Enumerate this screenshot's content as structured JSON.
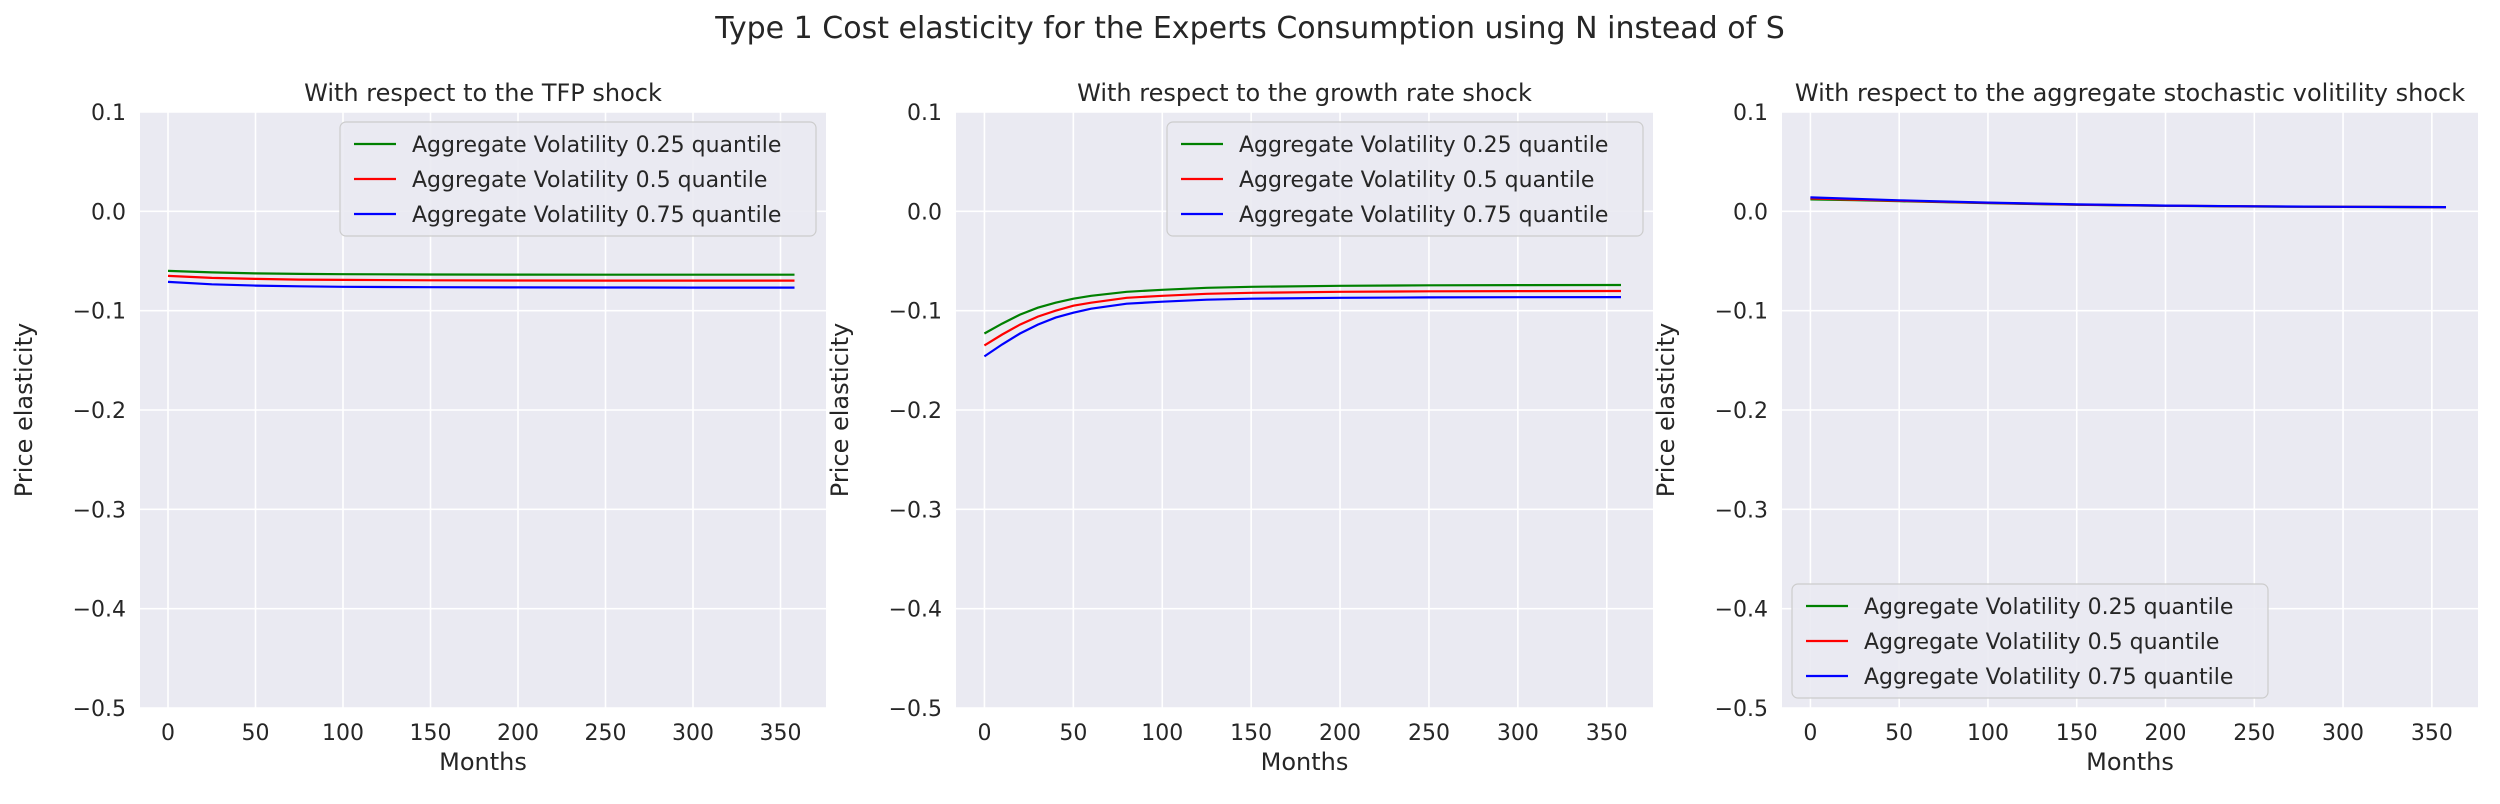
{
  "figure": {
    "suptitle": "Type 1 Cost elasticity for the Experts Consumption using N instead of S"
  },
  "colors": {
    "plot_background": "#EAEAF2",
    "grid": "#FFFFFF",
    "q025": "#008000",
    "q05": "#FF0000",
    "q075": "#0000FF"
  },
  "chart_data": [
    {
      "type": "line",
      "title": "With respect to the TFP shock",
      "xlabel": "Months",
      "ylabel": "Price elasticity",
      "xlim": [
        -16,
        376
      ],
      "ylim": [
        -0.5,
        0.1
      ],
      "xticks": [
        0,
        50,
        100,
        150,
        200,
        250,
        300,
        350
      ],
      "yticks": [
        -0.5,
        -0.4,
        -0.3,
        -0.2,
        -0.1,
        0.0,
        0.1
      ],
      "ytick_labels": [
        "−0.5",
        "−0.4",
        "−0.3",
        "−0.2",
        "−0.1",
        "0.0",
        "0.1"
      ],
      "grid": true,
      "legend_position": "upper right",
      "x": [
        0,
        25,
        50,
        75,
        100,
        150,
        200,
        250,
        300,
        358
      ],
      "series": [
        {
          "name": "Aggregate Volatility 0.25 quantile",
          "color": "#008000",
          "values": [
            -0.06,
            -0.0615,
            -0.0625,
            -0.063,
            -0.0633,
            -0.0636,
            -0.0637,
            -0.0638,
            -0.0638,
            -0.0638
          ]
        },
        {
          "name": "Aggregate Volatility 0.5 quantile",
          "color": "#FF0000",
          "values": [
            -0.065,
            -0.067,
            -0.068,
            -0.0687,
            -0.069,
            -0.0694,
            -0.0696,
            -0.0697,
            -0.0697,
            -0.0697
          ]
        },
        {
          "name": "Aggregate Volatility 0.75 quantile",
          "color": "#0000FF",
          "values": [
            -0.071,
            -0.0735,
            -0.0748,
            -0.0755,
            -0.076,
            -0.0764,
            -0.0766,
            -0.0767,
            -0.0768,
            -0.0768
          ]
        }
      ]
    },
    {
      "type": "line",
      "title": "With respect to the growth rate shock",
      "xlabel": "Months",
      "ylabel": "Price elasticity",
      "xlim": [
        -16,
        376
      ],
      "ylim": [
        -0.5,
        0.1
      ],
      "xticks": [
        0,
        50,
        100,
        150,
        200,
        250,
        300,
        350
      ],
      "yticks": [
        -0.5,
        -0.4,
        -0.3,
        -0.2,
        -0.1,
        0.0,
        0.1
      ],
      "ytick_labels": [
        "−0.5",
        "−0.4",
        "−0.3",
        "−0.2",
        "−0.1",
        "0.0",
        "0.1"
      ],
      "grid": true,
      "legend_position": "upper right",
      "x": [
        0,
        10,
        20,
        30,
        40,
        50,
        60,
        80,
        100,
        125,
        150,
        200,
        250,
        300,
        358
      ],
      "series": [
        {
          "name": "Aggregate Volatility 0.25 quantile",
          "color": "#008000",
          "values": [
            -0.123,
            -0.113,
            -0.104,
            -0.097,
            -0.092,
            -0.088,
            -0.085,
            -0.081,
            -0.079,
            -0.077,
            -0.076,
            -0.075,
            -0.0745,
            -0.0743,
            -0.0742
          ]
        },
        {
          "name": "Aggregate Volatility 0.5 quantile",
          "color": "#FF0000",
          "values": [
            -0.135,
            -0.124,
            -0.114,
            -0.106,
            -0.1,
            -0.095,
            -0.092,
            -0.087,
            -0.085,
            -0.083,
            -0.082,
            -0.081,
            -0.0805,
            -0.0803,
            -0.0802
          ]
        },
        {
          "name": "Aggregate Volatility 0.75 quantile",
          "color": "#0000FF",
          "values": [
            -0.146,
            -0.134,
            -0.123,
            -0.114,
            -0.107,
            -0.102,
            -0.098,
            -0.093,
            -0.091,
            -0.089,
            -0.088,
            -0.087,
            -0.0866,
            -0.0864,
            -0.0863
          ]
        }
      ]
    },
    {
      "type": "line",
      "title": "With respect to the aggregate stochastic volitility shock",
      "xlabel": "Months",
      "ylabel": "Price elasticity",
      "xlim": [
        -16,
        376
      ],
      "ylim": [
        -0.5,
        0.1
      ],
      "xticks": [
        0,
        50,
        100,
        150,
        200,
        250,
        300,
        350
      ],
      "yticks": [
        -0.5,
        -0.4,
        -0.3,
        -0.2,
        -0.1,
        0.0,
        0.1
      ],
      "ytick_labels": [
        "−0.5",
        "−0.4",
        "−0.3",
        "−0.2",
        "−0.1",
        "0.0",
        "0.1"
      ],
      "grid": true,
      "legend_position": "lower left",
      "x": [
        0,
        25,
        50,
        75,
        100,
        150,
        200,
        250,
        300,
        358
      ],
      "series": [
        {
          "name": "Aggregate Volatility 0.25 quantile",
          "color": "#008000",
          "values": [
            0.012,
            0.0112,
            0.0102,
            0.0092,
            0.0082,
            0.0066,
            0.0056,
            0.0049,
            0.0045,
            0.0042
          ]
        },
        {
          "name": "Aggregate Volatility 0.5 quantile",
          "color": "#FF0000",
          "values": [
            0.013,
            0.0118,
            0.0106,
            0.0095,
            0.0085,
            0.0068,
            0.0057,
            0.005,
            0.0046,
            0.0043
          ]
        },
        {
          "name": "Aggregate Volatility 0.75 quantile",
          "color": "#0000FF",
          "values": [
            0.014,
            0.0125,
            0.0111,
            0.0099,
            0.0088,
            0.007,
            0.0058,
            0.0051,
            0.0046,
            0.0043
          ]
        }
      ]
    }
  ]
}
